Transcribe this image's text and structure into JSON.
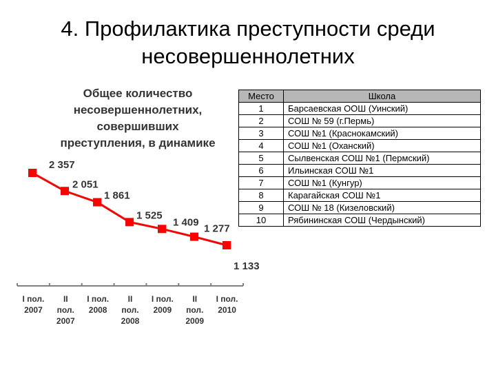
{
  "slide": {
    "title_line1": "4. Профилактика преступности среди",
    "title_line2": "несовершеннолетних"
  },
  "chart_data": {
    "type": "line",
    "title_lines": [
      "Общее количество",
      "несовершеннолетних,",
      "совершивших",
      "преступления, в динамике"
    ],
    "categories": [
      [
        "I пол.",
        "2007"
      ],
      [
        "II",
        "пол.",
        "2007"
      ],
      [
        "I пол.",
        "2008"
      ],
      [
        "II",
        "пол.",
        "2008"
      ],
      [
        "I пол.",
        "2009"
      ],
      [
        "II",
        "пол.",
        "2009"
      ],
      [
        "I пол.",
        "2010"
      ]
    ],
    "values": [
      2357,
      2051,
      1861,
      1525,
      1409,
      1277,
      1133
    ],
    "data_labels": [
      "2 357",
      "2 051",
      "1 861",
      "1 525",
      "1 409",
      "1 277",
      "1 133"
    ],
    "color": "#ff0000",
    "grid": false,
    "legend": "none"
  },
  "table": {
    "headers": {
      "place": "Место",
      "school": "Школа"
    },
    "rows": [
      {
        "place": "1",
        "school": "Барсаевская ООШ (Уинский)"
      },
      {
        "place": "2",
        "school": "СОШ № 59 (г.Пермь)"
      },
      {
        "place": "3",
        "school": "СОШ №1 (Краснокамский)"
      },
      {
        "place": "4",
        "school": "СОШ №1 (Оханский)"
      },
      {
        "place": "5",
        "school": "Сылвенская СОШ №1 (Пермский)"
      },
      {
        "place": "6",
        "school": "Ильинская СОШ №1"
      },
      {
        "place": "7",
        "school": "СОШ №1 (Кунгур)"
      },
      {
        "place": "8",
        "school": "Карагайская СОШ №1"
      },
      {
        "place": "9",
        "school": "СОШ № 18 (Кизеловский)"
      },
      {
        "place": "10",
        "school": "Рябининская СОШ (Чердынский)"
      }
    ]
  }
}
